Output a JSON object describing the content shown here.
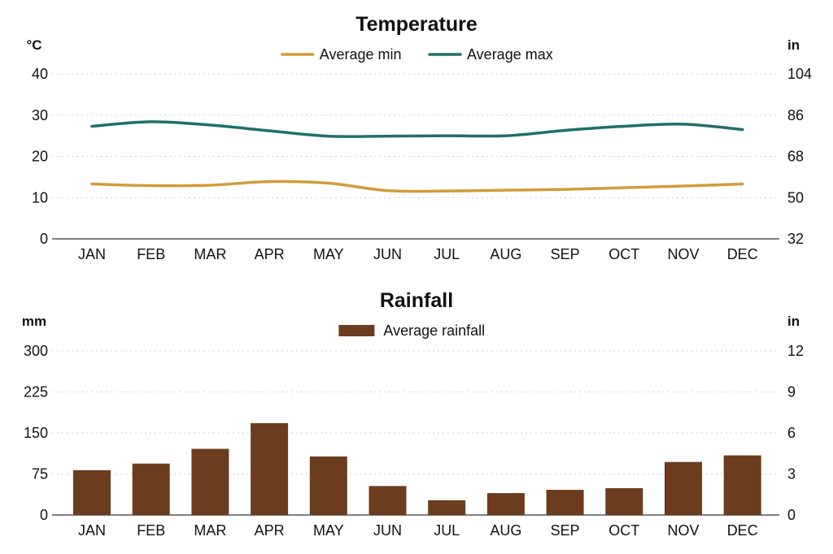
{
  "chart_data": [
    {
      "type": "line",
      "title": "Temperature",
      "left_unit": "°C",
      "right_unit": "in",
      "categories": [
        "JAN",
        "FEB",
        "MAR",
        "APR",
        "MAY",
        "JUN",
        "JUL",
        "AUG",
        "SEP",
        "OCT",
        "NOV",
        "DEC"
      ],
      "y_ticks": [
        "0",
        "10",
        "20",
        "30",
        "40"
      ],
      "y2_ticks": [
        "32",
        "50",
        "68",
        "86",
        "104"
      ],
      "ylim": [
        0,
        40
      ],
      "grid": true,
      "legend_position": "top-center",
      "series": [
        {
          "name": "Average min",
          "color": "#D29A3A",
          "values": [
            13.3,
            12.9,
            13.0,
            13.9,
            13.5,
            11.7,
            11.6,
            11.8,
            12.0,
            12.4,
            12.8,
            13.3
          ]
        },
        {
          "name": "Average max",
          "color": "#1E6F6C",
          "values": [
            27.3,
            28.4,
            27.6,
            26.2,
            24.9,
            24.9,
            25.0,
            25.0,
            26.3,
            27.3,
            27.8,
            26.5
          ]
        }
      ]
    },
    {
      "type": "bar",
      "title": "Rainfall",
      "left_unit": "mm",
      "right_unit": "in",
      "categories": [
        "JAN",
        "FEB",
        "MAR",
        "APR",
        "MAY",
        "JUN",
        "JUL",
        "AUG",
        "SEP",
        "OCT",
        "NOV",
        "DEC"
      ],
      "y_ticks": [
        "0",
        "75",
        "150",
        "225",
        "300"
      ],
      "y2_ticks": [
        "0",
        "3",
        "6",
        "9",
        "12"
      ],
      "ylim": [
        0,
        300
      ],
      "grid": true,
      "legend_position": "top-center",
      "series": [
        {
          "name": "Average rainfall",
          "color": "#6B3C1E",
          "values": [
            82,
            94,
            121,
            168,
            107,
            53,
            27,
            40,
            46,
            49,
            97,
            109
          ]
        }
      ]
    }
  ]
}
